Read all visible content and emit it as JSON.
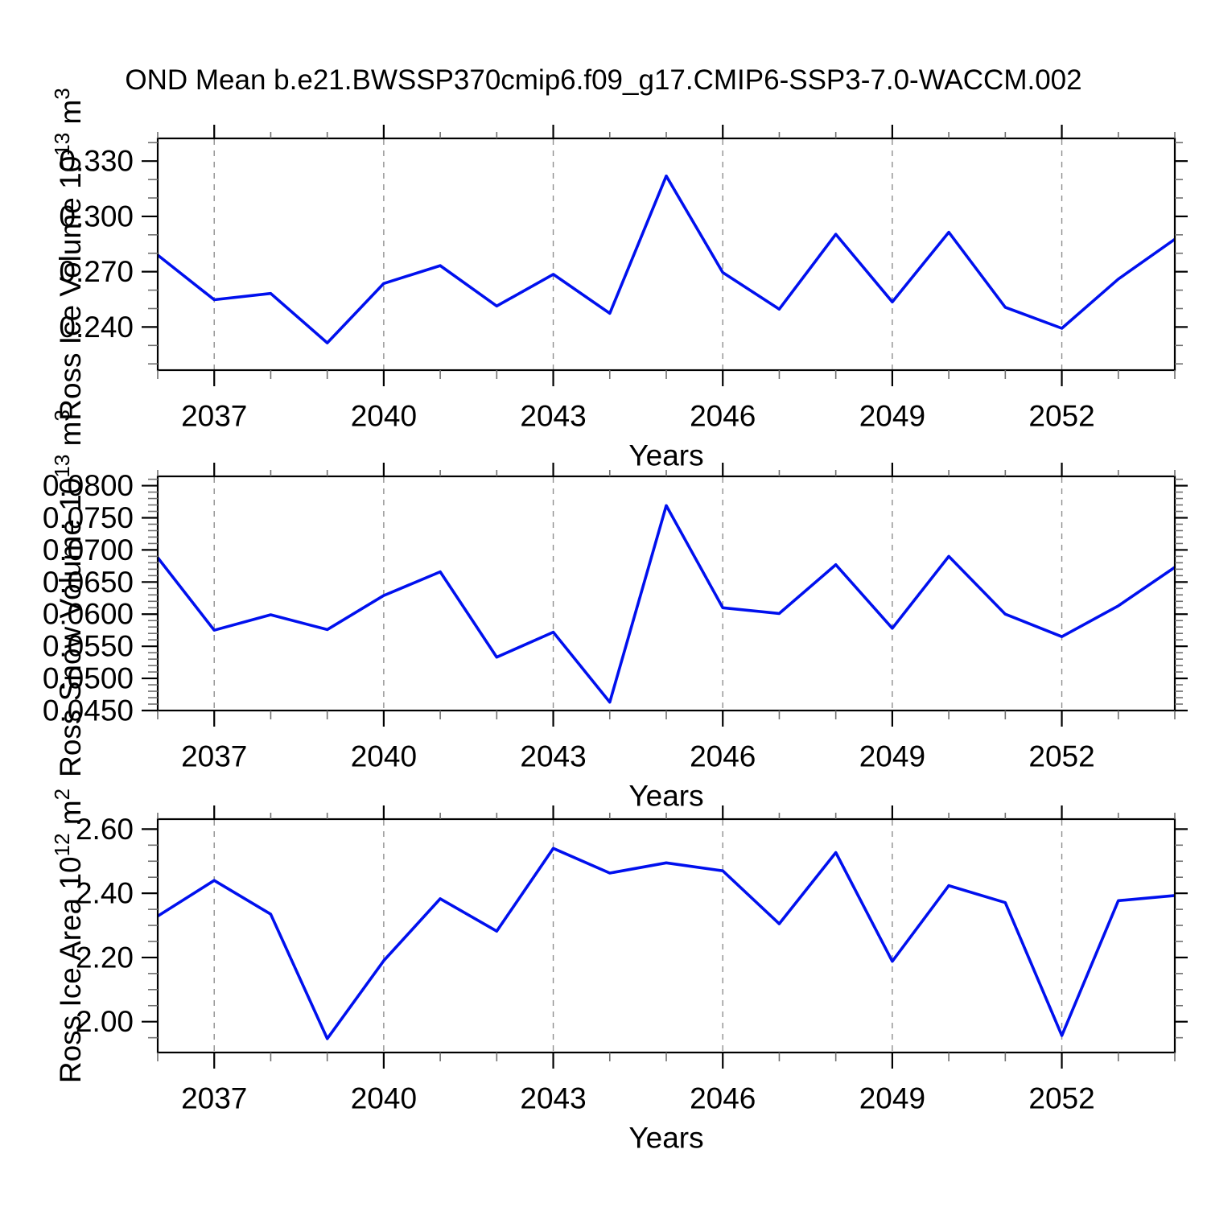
{
  "title": "OND Mean b.e21.BWSSP370cmip6.f09_g17.CMIP6-SSP3-7.0-WACCM.002",
  "xlabel": "Years",
  "style": {
    "line_color": "#0010ee",
    "axis_color": "#000000",
    "grid_color": "#8f8f8f",
    "minor_tick_color": "#6f6f6f",
    "background": "#ffffff"
  },
  "x": {
    "lim": [
      2036,
      2054
    ],
    "major_ticks": [
      2037,
      2040,
      2043,
      2046,
      2049,
      2052
    ],
    "tick_labels": [
      "2037",
      "2040",
      "2043",
      "2046",
      "2049",
      "2052"
    ],
    "minor_step": 1
  },
  "chart_data": [
    {
      "type": "line",
      "name": "ross-ice-volume",
      "ylabel": {
        "base": "Ross Ice Volume 10",
        "exp": "13",
        "unit": "m",
        "unit_exp": "3"
      },
      "x": [
        2036,
        2037,
        2038,
        2039,
        2040,
        2041,
        2042,
        2043,
        2044,
        2045,
        2046,
        2047,
        2048,
        2049,
        2050,
        2051,
        2052,
        2053,
        2054
      ],
      "values": [
        0.279,
        0.2548,
        0.2582,
        0.2314,
        0.2636,
        0.2733,
        0.2514,
        0.2686,
        0.2474,
        0.3219,
        0.2696,
        0.2497,
        0.2903,
        0.2536,
        0.2914,
        0.2507,
        0.2393,
        0.266,
        0.2876
      ],
      "ylim": [
        0.2166,
        0.3423
      ],
      "ytick_values": [
        0.24,
        0.27,
        0.3,
        0.33
      ],
      "ytick_labels": [
        "0.240",
        "0.270",
        "0.300",
        "0.330"
      ],
      "y_minor_step": 0.01,
      "xlabel": "Years",
      "grid": true
    },
    {
      "type": "line",
      "name": "ross-snow-volume",
      "ylabel": {
        "base": "Ross Snow Volume 10",
        "exp": "13",
        "unit": "m",
        "unit_exp": "3"
      },
      "x": [
        2036,
        2037,
        2038,
        2039,
        2040,
        2041,
        2042,
        2043,
        2044,
        2045,
        2046,
        2047,
        2048,
        2049,
        2050,
        2051,
        2052,
        2053,
        2054
      ],
      "values": [
        0.0688,
        0.0575,
        0.0599,
        0.0576,
        0.0629,
        0.0666,
        0.0533,
        0.0572,
        0.0463,
        0.0769,
        0.061,
        0.0601,
        0.0677,
        0.0578,
        0.069,
        0.06,
        0.0565,
        0.0613,
        0.0673
      ],
      "ylim": [
        0.045,
        0.08145
      ],
      "ytick_values": [
        0.045,
        0.05,
        0.055,
        0.06,
        0.065,
        0.07,
        0.075,
        0.08
      ],
      "ytick_labels": [
        "0.0450",
        "0.0500",
        "0.0550",
        "0.0600",
        "0.0650",
        "0.0700",
        "0.0750",
        "0.0800"
      ],
      "y_minor_step": 0.001,
      "xlabel": "Years",
      "grid": true
    },
    {
      "type": "line",
      "name": "ross-ice-area",
      "ylabel": {
        "base": "Ross Ice Area 10",
        "exp": "12",
        "unit": "m",
        "unit_exp": "2"
      },
      "x": [
        2036,
        2037,
        2038,
        2039,
        2040,
        2041,
        2042,
        2043,
        2044,
        2045,
        2046,
        2047,
        2048,
        2049,
        2050,
        2051,
        2052,
        2053,
        2054
      ],
      "values": [
        2.329,
        2.44,
        2.335,
        1.947,
        2.19,
        2.383,
        2.282,
        2.54,
        2.463,
        2.495,
        2.47,
        2.305,
        2.527,
        2.188,
        2.424,
        2.371,
        1.957,
        2.377,
        2.393
      ],
      "ylim": [
        1.904,
        2.631
      ],
      "ytick_values": [
        2.0,
        2.2,
        2.4,
        2.6
      ],
      "ytick_labels": [
        "2.00",
        "2.20",
        "2.40",
        "2.60"
      ],
      "y_minor_step": 0.05,
      "xlabel": "Years",
      "grid": true
    }
  ]
}
